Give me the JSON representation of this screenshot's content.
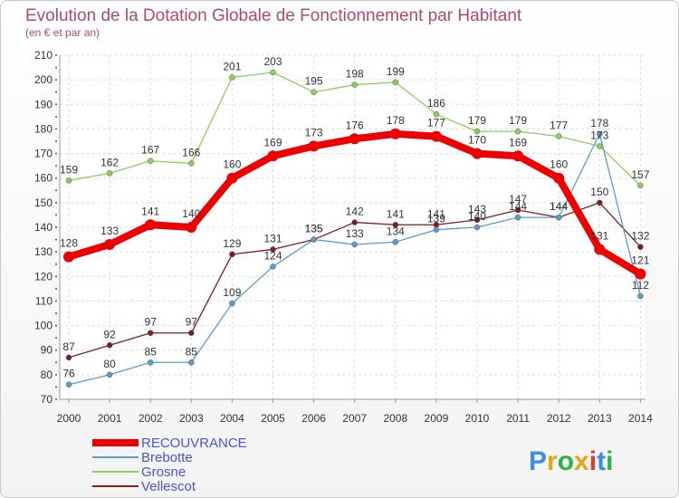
{
  "chart_data": {
    "type": "line",
    "title": "Evolution de la Dotation Globale de Fonctionnement par Habitant",
    "subtitle": "(en € et par an)",
    "xlabel": "",
    "ylabel": "",
    "categories": [
      "2000",
      "2001",
      "2002",
      "2003",
      "2004",
      "2005",
      "2006",
      "2007",
      "2008",
      "2009",
      "2010",
      "2011",
      "2012",
      "2013",
      "2014"
    ],
    "ylim": [
      70,
      210
    ],
    "yticks": [
      70,
      80,
      90,
      100,
      110,
      120,
      130,
      140,
      150,
      160,
      170,
      180,
      190,
      200,
      210
    ],
    "grid": true,
    "legend_position": "bottom-left",
    "series": [
      {
        "name": "RECOUVRANCE",
        "color": "#ee0000",
        "values": [
          128,
          133,
          141,
          140,
          160,
          169,
          173,
          176,
          178,
          177,
          170,
          169,
          160,
          131,
          121
        ]
      },
      {
        "name": "Brebotte",
        "color": "#5b9bd0",
        "values": [
          76,
          80,
          85,
          85,
          109,
          124,
          135,
          133,
          134,
          139,
          140,
          144,
          144,
          178,
          112
        ]
      },
      {
        "name": "Grosne",
        "color": "#88d060",
        "values": [
          159,
          162,
          167,
          166,
          201,
          203,
          195,
          198,
          199,
          186,
          179,
          179,
          177,
          173,
          157
        ]
      },
      {
        "name": "Vellescot",
        "color": "#7a1f1f",
        "values": [
          87,
          92,
          97,
          97,
          129,
          131,
          135,
          142,
          141,
          141,
          143,
          147,
          144,
          150,
          132
        ]
      }
    ]
  },
  "logo": {
    "text": "Proxiti",
    "letters": [
      "P",
      "r",
      "o",
      "x",
      "i",
      "t",
      "i"
    ],
    "colors": [
      "#3a8de0",
      "#e8a317",
      "#2bb34a",
      "#e8a317",
      "#d93b3b",
      "#3a8de0",
      "#2bb34a"
    ]
  }
}
